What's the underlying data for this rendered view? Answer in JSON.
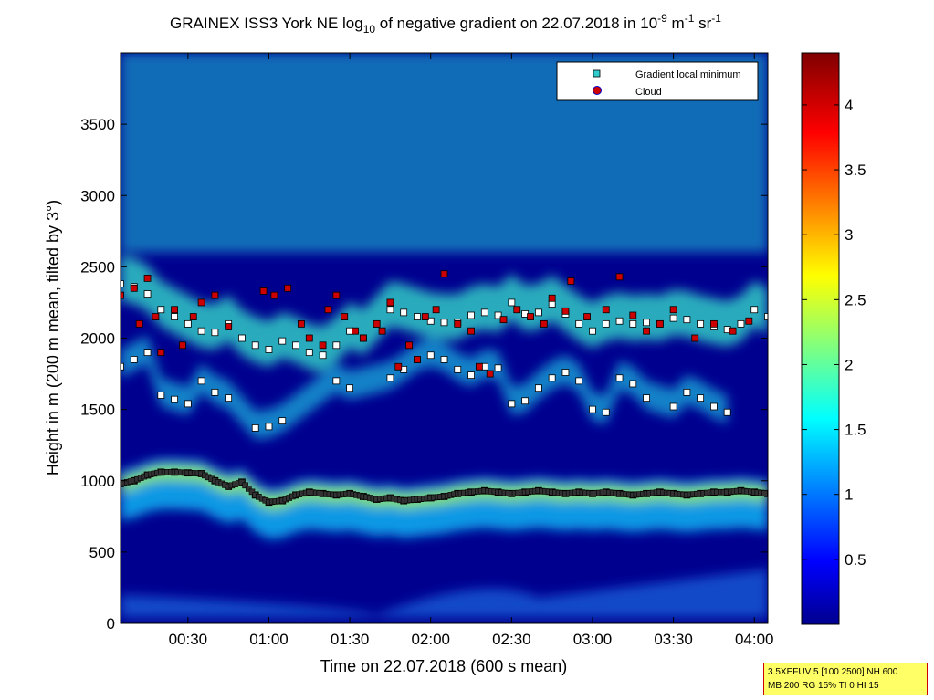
{
  "title": {
    "prefix": "GRAINEX ISS3 York NE log",
    "sub": "10",
    "middle": " of negative gradient on 22.07.2018 in 10",
    "sup1": "-9",
    "m_unit": " m",
    "sup2": "-1",
    "sr_unit": " sr",
    "sup3": "-1"
  },
  "info_box": {
    "line1": "3.5XEFUV 5 [100 2500] NH 600",
    "line2": "MB 200 RG 15% TI 0 HI 15"
  },
  "chart_data": {
    "type": "heatmap",
    "xlabel": "Time on 22.07.2018 (600 s mean)",
    "ylabel": "Height in m (200 m mean, tilted by 3°)",
    "x_range_min": [
      5,
      245
    ],
    "ylim": [
      0,
      4000
    ],
    "x_ticks": [
      {
        "min": 30,
        "label": "00:30"
      },
      {
        "min": 60,
        "label": "01:00"
      },
      {
        "min": 90,
        "label": "01:30"
      },
      {
        "min": 120,
        "label": "02:00"
      },
      {
        "min": 150,
        "label": "02:30"
      },
      {
        "min": 180,
        "label": "03:00"
      },
      {
        "min": 210,
        "label": "03:30"
      },
      {
        "min": 240,
        "label": "04:00"
      }
    ],
    "y_ticks": [
      0,
      500,
      1000,
      1500,
      2000,
      2500,
      3000,
      3500
    ],
    "colorbar": {
      "range": [
        0,
        4.4
      ],
      "ticks": [
        "0.5",
        "1",
        "1.5",
        "2",
        "2.5",
        "3",
        "3.5",
        "4"
      ],
      "colormap": "jet"
    },
    "legend": {
      "position": "top-right",
      "entries": [
        {
          "name": "Gradient local minimum",
          "marker": "square",
          "color": "#33cccc"
        },
        {
          "name": "Cloud",
          "marker": "circle",
          "color": "#cc0000"
        }
      ]
    },
    "series": [
      {
        "name": "Gradient local minimum",
        "layers": [
          {
            "points": [
              [
                5,
                980
              ],
              [
                10,
                1000
              ],
              [
                15,
                1040
              ],
              [
                20,
                1060
              ],
              [
                25,
                1060
              ],
              [
                30,
                1055
              ],
              [
                35,
                1050
              ],
              [
                40,
                1000
              ],
              [
                45,
                960
              ],
              [
                50,
                990
              ],
              [
                55,
                900
              ],
              [
                60,
                850
              ],
              [
                65,
                860
              ],
              [
                70,
                900
              ],
              [
                75,
                920
              ],
              [
                80,
                910
              ],
              [
                85,
                900
              ],
              [
                90,
                910
              ],
              [
                95,
                890
              ],
              [
                100,
                870
              ],
              [
                105,
                880
              ],
              [
                110,
                860
              ],
              [
                115,
                870
              ],
              [
                120,
                880
              ],
              [
                125,
                890
              ],
              [
                130,
                910
              ],
              [
                135,
                920
              ],
              [
                140,
                930
              ],
              [
                145,
                920
              ],
              [
                150,
                910
              ],
              [
                155,
                920
              ],
              [
                160,
                930
              ],
              [
                165,
                920
              ],
              [
                170,
                910
              ],
              [
                175,
                920
              ],
              [
                180,
                910
              ],
              [
                185,
                920
              ],
              [
                190,
                910
              ],
              [
                195,
                900
              ],
              [
                200,
                910
              ],
              [
                205,
                920
              ],
              [
                210,
                910
              ],
              [
                215,
                900
              ],
              [
                220,
                910
              ],
              [
                225,
                920
              ],
              [
                230,
                920
              ],
              [
                235,
                930
              ],
              [
                240,
                920
              ],
              [
                245,
                910
              ]
            ]
          },
          {
            "points": [
              [
                5,
                1800
              ],
              [
                10,
                1850
              ],
              [
                15,
                1900
              ],
              [
                20,
                1600
              ],
              [
                25,
                1570
              ],
              [
                30,
                1540
              ],
              [
                35,
                1700
              ],
              [
                40,
                1620
              ],
              [
                45,
                1580
              ],
              [
                55,
                1370
              ],
              [
                60,
                1380
              ],
              [
                65,
                1420
              ],
              [
                85,
                1700
              ],
              [
                90,
                1650
              ],
              [
                105,
                1720
              ],
              [
                110,
                1780
              ],
              [
                115,
                1850
              ],
              [
                120,
                1880
              ],
              [
                125,
                1850
              ],
              [
                130,
                1780
              ],
              [
                135,
                1740
              ],
              [
                140,
                1800
              ],
              [
                145,
                1790
              ],
              [
                150,
                1540
              ],
              [
                155,
                1560
              ],
              [
                160,
                1650
              ],
              [
                165,
                1720
              ],
              [
                170,
                1760
              ],
              [
                175,
                1700
              ],
              [
                180,
                1500
              ],
              [
                185,
                1480
              ],
              [
                190,
                1720
              ],
              [
                195,
                1680
              ],
              [
                200,
                1580
              ],
              [
                210,
                1520
              ],
              [
                215,
                1620
              ],
              [
                220,
                1580
              ],
              [
                225,
                1520
              ],
              [
                230,
                1480
              ]
            ]
          },
          {
            "points": [
              [
                5,
                2380
              ],
              [
                10,
                2360
              ],
              [
                15,
                2310
              ],
              [
                20,
                2200
              ],
              [
                25,
                2150
              ],
              [
                30,
                2100
              ],
              [
                35,
                2050
              ],
              [
                40,
                2040
              ],
              [
                45,
                2100
              ],
              [
                50,
                2000
              ],
              [
                55,
                1950
              ],
              [
                60,
                1920
              ],
              [
                65,
                1980
              ],
              [
                70,
                1950
              ],
              [
                75,
                1900
              ],
              [
                80,
                1880
              ],
              [
                85,
                1950
              ],
              [
                90,
                2050
              ],
              [
                95,
                2000
              ],
              [
                100,
                2100
              ],
              [
                105,
                2200
              ],
              [
                110,
                2180
              ],
              [
                115,
                2150
              ],
              [
                120,
                2120
              ],
              [
                125,
                2110
              ],
              [
                130,
                2110
              ],
              [
                135,
                2160
              ],
              [
                140,
                2180
              ],
              [
                145,
                2160
              ],
              [
                150,
                2250
              ],
              [
                155,
                2170
              ],
              [
                160,
                2180
              ],
              [
                165,
                2240
              ],
              [
                170,
                2170
              ],
              [
                175,
                2100
              ],
              [
                180,
                2050
              ],
              [
                185,
                2100
              ],
              [
                190,
                2120
              ],
              [
                195,
                2100
              ],
              [
                200,
                2110
              ],
              [
                205,
                2100
              ],
              [
                210,
                2140
              ],
              [
                215,
                2130
              ],
              [
                220,
                2100
              ],
              [
                225,
                2080
              ],
              [
                230,
                2060
              ],
              [
                235,
                2100
              ],
              [
                240,
                2200
              ],
              [
                245,
                2150
              ]
            ]
          }
        ]
      },
      {
        "name": "Cloud",
        "points": [
          [
            5,
            2300
          ],
          [
            10,
            2350
          ],
          [
            12,
            2100
          ],
          [
            15,
            2420
          ],
          [
            18,
            2150
          ],
          [
            20,
            1900
          ],
          [
            25,
            2200
          ],
          [
            28,
            1950
          ],
          [
            32,
            2150
          ],
          [
            35,
            2250
          ],
          [
            40,
            2300
          ],
          [
            45,
            2080
          ],
          [
            58,
            2330
          ],
          [
            62,
            2300
          ],
          [
            67,
            2350
          ],
          [
            72,
            2100
          ],
          [
            75,
            2000
          ],
          [
            80,
            1950
          ],
          [
            82,
            2200
          ],
          [
            85,
            2300
          ],
          [
            88,
            2150
          ],
          [
            92,
            2050
          ],
          [
            95,
            2000
          ],
          [
            100,
            2100
          ],
          [
            102,
            2050
          ],
          [
            105,
            2250
          ],
          [
            108,
            1800
          ],
          [
            112,
            1950
          ],
          [
            115,
            1850
          ],
          [
            118,
            2150
          ],
          [
            122,
            2200
          ],
          [
            125,
            2450
          ],
          [
            130,
            2100
          ],
          [
            135,
            2050
          ],
          [
            138,
            1800
          ],
          [
            142,
            1750
          ],
          [
            147,
            2130
          ],
          [
            152,
            2200
          ],
          [
            157,
            2150
          ],
          [
            162,
            2100
          ],
          [
            165,
            2280
          ],
          [
            170,
            2190
          ],
          [
            172,
            2400
          ],
          [
            178,
            2150
          ],
          [
            185,
            2200
          ],
          [
            190,
            2430
          ],
          [
            195,
            2160
          ],
          [
            200,
            2050
          ],
          [
            205,
            2100
          ],
          [
            210,
            2200
          ],
          [
            218,
            2000
          ],
          [
            225,
            2100
          ],
          [
            232,
            2050
          ],
          [
            238,
            2120
          ]
        ]
      }
    ]
  }
}
